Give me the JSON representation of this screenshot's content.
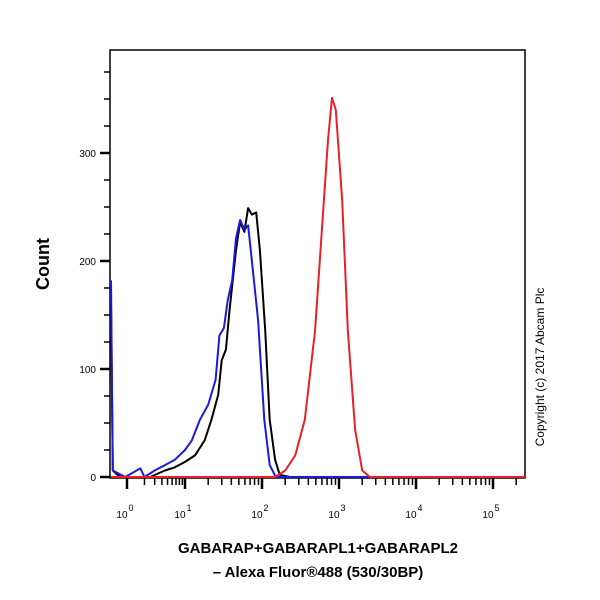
{
  "chart_data": {
    "type": "line",
    "title": "",
    "xlabel_lines": [
      "GABARAP+GABARAPL1+GABARAPL2",
      "– Alexa Fluor®488 (530/30BP)"
    ],
    "ylabel": "Count",
    "x_scale": "biexponential/log",
    "x_ticks": [
      {
        "base": "10",
        "exp": "0",
        "value": 1
      },
      {
        "base": "10",
        "exp": "1",
        "value": 10
      },
      {
        "base": "10",
        "exp": "2",
        "value": 100
      },
      {
        "base": "10",
        "exp": "3",
        "value": 1000
      },
      {
        "base": "10",
        "exp": "4",
        "value": 10000
      },
      {
        "base": "10",
        "exp": "5",
        "value": 100000
      }
    ],
    "y_ticks": [
      0,
      100,
      200,
      300
    ],
    "ylim": [
      0,
      396
    ],
    "xlim": [
      0.53,
      263000
    ],
    "grid": false,
    "annotation": "Copyright (c) 2017 Abcam Plc",
    "series": [
      {
        "color": "#000000",
        "points": [
          [
            0.53,
            160
          ],
          [
            0.57,
            6
          ],
          [
            0.76,
            0
          ],
          [
            2.5,
            0
          ],
          [
            4.5,
            6
          ],
          [
            6.7,
            9
          ],
          [
            10,
            14
          ],
          [
            13.5,
            20
          ],
          [
            18,
            34
          ],
          [
            22,
            53
          ],
          [
            27,
            76
          ],
          [
            30,
            108
          ],
          [
            34,
            118
          ],
          [
            38,
            155
          ],
          [
            46,
            210
          ],
          [
            52,
            236
          ],
          [
            59,
            227
          ],
          [
            66,
            249
          ],
          [
            74,
            243
          ],
          [
            84,
            245
          ],
          [
            94,
            210
          ],
          [
            110,
            136
          ],
          [
            126,
            53
          ],
          [
            148,
            16
          ],
          [
            170,
            2
          ],
          [
            230,
            0
          ],
          [
            263000,
            0
          ]
        ]
      },
      {
        "color": "#1a1adc",
        "points": [
          [
            0.53,
            182
          ],
          [
            0.57,
            6
          ],
          [
            0.93,
            0
          ],
          [
            1.7,
            8
          ],
          [
            2.0,
            0
          ],
          [
            3.0,
            6
          ],
          [
            4.5,
            11
          ],
          [
            6.7,
            16
          ],
          [
            10,
            25
          ],
          [
            12.3,
            34
          ],
          [
            15.6,
            53
          ],
          [
            20,
            67
          ],
          [
            25,
            90
          ],
          [
            28,
            131
          ],
          [
            32,
            138
          ],
          [
            36,
            164
          ],
          [
            41,
            182
          ],
          [
            46,
            221
          ],
          [
            52,
            238
          ],
          [
            59,
            229
          ],
          [
            66,
            233
          ],
          [
            74,
            200
          ],
          [
            89,
            145
          ],
          [
            107,
            53
          ],
          [
            126,
            11
          ],
          [
            151,
            0
          ],
          [
            263000,
            0
          ]
        ]
      },
      {
        "color": "#e8202a",
        "points": [
          [
            0.53,
            0
          ],
          [
            148,
            0
          ],
          [
            200,
            6
          ],
          [
            270,
            20
          ],
          [
            360,
            53
          ],
          [
            490,
            136
          ],
          [
            600,
            229
          ],
          [
            720,
            312
          ],
          [
            810,
            351
          ],
          [
            910,
            340
          ],
          [
            1100,
            256
          ],
          [
            1300,
            136
          ],
          [
            1620,
            44
          ],
          [
            2000,
            6
          ],
          [
            2520,
            0
          ],
          [
            263000,
            0
          ]
        ]
      }
    ]
  }
}
